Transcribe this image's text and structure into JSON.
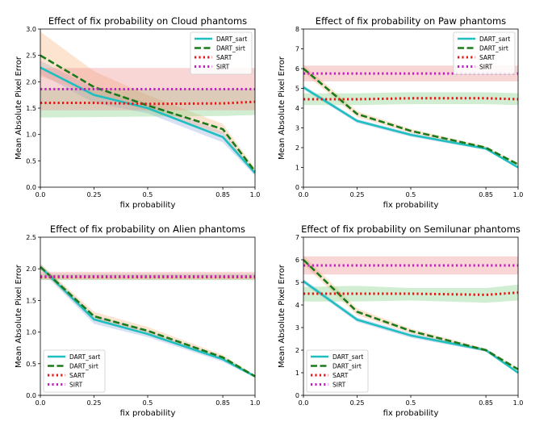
{
  "chart_data": [
    {
      "type": "line",
      "title": "Effect of fix probability on Cloud phantoms",
      "xlabel": "fix probability",
      "ylabel": "Mean Absolute Pixel Error",
      "x": [
        0.0,
        0.25,
        0.5,
        0.85,
        1.0
      ],
      "x_tick_labels": [
        "0.0",
        "0.25",
        "0.5",
        "0.85",
        "1.0"
      ],
      "ylim": [
        0,
        3.0
      ],
      "y_ticks": [
        0.0,
        0.5,
        1.0,
        1.5,
        2.0,
        2.5,
        3.0
      ],
      "y_tick_labels": [
        "0.0",
        "0.5",
        "1.0",
        "1.5",
        "2.0",
        "2.5",
        "3.0"
      ],
      "legend_position": "top-right",
      "series": [
        {
          "name": "DART_sart",
          "values": [
            2.27,
            1.75,
            1.5,
            0.95,
            0.27
          ],
          "band_low": [
            2.15,
            1.6,
            1.4,
            0.85,
            0.22
          ],
          "band_high": [
            2.4,
            1.88,
            1.6,
            1.05,
            0.32
          ],
          "color": "#1fbfbf",
          "band_color": "#8ea8e0",
          "style": "solid"
        },
        {
          "name": "DART_sirt",
          "values": [
            2.5,
            1.9,
            1.55,
            1.1,
            0.3
          ],
          "band_low": [
            2.1,
            1.75,
            1.45,
            1.0,
            0.25
          ],
          "band_high": [
            2.95,
            2.2,
            1.75,
            1.2,
            0.36
          ],
          "color": "#1a7a1a",
          "band_color": "#f6b27a",
          "style": "dashed"
        },
        {
          "name": "SART",
          "values": [
            1.6,
            1.6,
            1.58,
            1.59,
            1.62
          ],
          "band_low": [
            1.32,
            1.33,
            1.34,
            1.35,
            1.37
          ],
          "band_high": [
            1.88,
            1.88,
            1.86,
            1.86,
            1.87
          ],
          "color": "#ee1111",
          "band_color": "#7fcf7f",
          "style": "dotted"
        },
        {
          "name": "SIRT",
          "values": [
            1.86,
            1.86,
            1.86,
            1.86,
            1.86
          ],
          "band_low": [
            1.46,
            1.46,
            1.46,
            1.46,
            1.46
          ],
          "band_high": [
            2.26,
            2.26,
            2.26,
            2.26,
            2.26
          ],
          "color": "#c21ec2",
          "band_color": "#ef8a8a",
          "style": "dotted"
        }
      ]
    },
    {
      "type": "line",
      "title": "Effect of fix probability on Paw phantoms",
      "xlabel": "fix probability",
      "ylabel": "Mean Absolute Pixel Error",
      "x": [
        0.0,
        0.25,
        0.5,
        0.85,
        1.0
      ],
      "x_tick_labels": [
        "0.0",
        "0.25",
        "0.5",
        "0.85",
        "1.0"
      ],
      "ylim": [
        0,
        8
      ],
      "y_ticks": [
        0,
        1,
        2,
        3,
        4,
        5,
        6,
        7,
        8
      ],
      "y_tick_labels": [
        "0",
        "1",
        "2",
        "3",
        "4",
        "5",
        "6",
        "7",
        "8"
      ],
      "legend_position": "top-right",
      "series": [
        {
          "name": "DART_sart",
          "values": [
            5.05,
            3.35,
            2.65,
            1.95,
            1.0
          ],
          "band_low": [
            4.95,
            3.25,
            2.55,
            1.88,
            0.95
          ],
          "band_high": [
            5.15,
            3.45,
            2.75,
            2.02,
            1.05
          ],
          "color": "#1fbfbf",
          "band_color": "#8ea8e0",
          "style": "solid"
        },
        {
          "name": "DART_sirt",
          "values": [
            6.0,
            3.7,
            2.85,
            2.0,
            1.15
          ],
          "band_low": [
            5.8,
            3.55,
            2.75,
            1.93,
            1.1
          ],
          "band_high": [
            6.2,
            3.85,
            2.95,
            2.07,
            1.2
          ],
          "color": "#1a7a1a",
          "band_color": "#f6b27a",
          "style": "dashed"
        },
        {
          "name": "SART",
          "values": [
            4.45,
            4.45,
            4.5,
            4.5,
            4.45
          ],
          "band_low": [
            4.15,
            4.15,
            4.2,
            4.2,
            4.15
          ],
          "band_high": [
            4.75,
            4.75,
            4.8,
            4.8,
            4.75
          ],
          "color": "#ee1111",
          "band_color": "#7fcf7f",
          "style": "dotted"
        },
        {
          "name": "SIRT",
          "values": [
            5.75,
            5.75,
            5.75,
            5.75,
            5.75
          ],
          "band_low": [
            5.35,
            5.35,
            5.35,
            5.35,
            5.35
          ],
          "band_high": [
            6.15,
            6.15,
            6.15,
            6.15,
            6.15
          ],
          "color": "#c21ec2",
          "band_color": "#ef8a8a",
          "style": "dotted"
        }
      ]
    },
    {
      "type": "line",
      "title": "Effect of fix probability on Alien phantoms",
      "xlabel": "fix probability",
      "ylabel": "Mean Absolute Pixel Error",
      "x": [
        0.0,
        0.25,
        0.5,
        0.85,
        1.0
      ],
      "x_tick_labels": [
        "0.0",
        "0.25",
        "0.5",
        "0.85",
        "1.0"
      ],
      "ylim": [
        0,
        2.5
      ],
      "y_ticks": [
        0.0,
        0.5,
        1.0,
        1.5,
        2.0,
        2.5
      ],
      "y_tick_labels": [
        "0.0",
        "0.5",
        "1.0",
        "1.5",
        "2.0",
        "2.5"
      ],
      "legend_position": "bottom-left",
      "series": [
        {
          "name": "DART_sart",
          "values": [
            2.03,
            1.2,
            0.97,
            0.57,
            0.3
          ],
          "band_low": [
            1.98,
            1.13,
            0.92,
            0.53,
            0.28
          ],
          "band_high": [
            2.08,
            1.27,
            1.02,
            0.61,
            0.32
          ],
          "color": "#1fbfbf",
          "band_color": "#8ea8e0",
          "style": "solid"
        },
        {
          "name": "DART_sirt",
          "values": [
            2.03,
            1.25,
            1.02,
            0.6,
            0.3
          ],
          "band_low": [
            1.98,
            1.18,
            0.97,
            0.56,
            0.28
          ],
          "band_high": [
            2.08,
            1.32,
            1.08,
            0.64,
            0.32
          ],
          "color": "#1a7a1a",
          "band_color": "#f6b27a",
          "style": "dashed"
        },
        {
          "name": "SART",
          "values": [
            1.87,
            1.87,
            1.87,
            1.87,
            1.87
          ],
          "band_low": [
            1.82,
            1.82,
            1.82,
            1.82,
            1.82
          ],
          "band_high": [
            1.92,
            1.92,
            1.92,
            1.92,
            1.92
          ],
          "color": "#ee1111",
          "band_color": "#7fcf7f",
          "style": "dotted"
        },
        {
          "name": "SIRT",
          "values": [
            1.88,
            1.88,
            1.88,
            1.88,
            1.88
          ],
          "band_low": [
            1.83,
            1.83,
            1.83,
            1.83,
            1.83
          ],
          "band_high": [
            1.95,
            1.95,
            1.95,
            1.95,
            1.95
          ],
          "color": "#c21ec2",
          "band_color": "#ef8a8a",
          "style": "dotted"
        }
      ]
    },
    {
      "type": "line",
      "title": "Effect of fix probability on Semilunar phantoms",
      "xlabel": "fix probability",
      "ylabel": "Mean Absolute Pixel Error",
      "x": [
        0.0,
        0.25,
        0.5,
        0.85,
        1.0
      ],
      "x_tick_labels": [
        "0.0",
        "0.25",
        "0.5",
        "0.85",
        "1.0"
      ],
      "ylim": [
        0,
        7
      ],
      "y_ticks": [
        0,
        1,
        2,
        3,
        4,
        5,
        6,
        7
      ],
      "y_tick_labels": [
        "0",
        "1",
        "2",
        "3",
        "4",
        "5",
        "6",
        "7"
      ],
      "legend_position": "bottom-left",
      "series": [
        {
          "name": "DART_sart",
          "values": [
            5.05,
            3.35,
            2.65,
            2.0,
            1.0
          ],
          "band_low": [
            4.95,
            3.25,
            2.55,
            1.93,
            0.95
          ],
          "band_high": [
            5.15,
            3.45,
            2.75,
            2.07,
            1.05
          ],
          "color": "#1fbfbf",
          "band_color": "#8ea8e0",
          "style": "solid"
        },
        {
          "name": "DART_sirt",
          "values": [
            6.0,
            3.7,
            2.85,
            2.0,
            1.15
          ],
          "band_low": [
            5.8,
            3.55,
            2.75,
            1.93,
            1.1
          ],
          "band_high": [
            6.2,
            3.85,
            2.95,
            2.07,
            1.2
          ],
          "color": "#1a7a1a",
          "band_color": "#f6b27a",
          "style": "dashed"
        },
        {
          "name": "SART",
          "values": [
            4.5,
            4.5,
            4.5,
            4.45,
            4.55
          ],
          "band_low": [
            4.15,
            4.15,
            4.2,
            4.1,
            4.2
          ],
          "band_high": [
            4.8,
            4.85,
            4.75,
            4.75,
            4.9
          ],
          "color": "#ee1111",
          "band_color": "#7fcf7f",
          "style": "dotted"
        },
        {
          "name": "SIRT",
          "values": [
            5.75,
            5.75,
            5.75,
            5.75,
            5.75
          ],
          "band_low": [
            5.35,
            5.35,
            5.35,
            5.35,
            5.35
          ],
          "band_high": [
            6.15,
            6.15,
            6.15,
            6.15,
            6.15
          ],
          "color": "#c21ec2",
          "band_color": "#ef8a8a",
          "style": "dotted"
        }
      ]
    }
  ]
}
